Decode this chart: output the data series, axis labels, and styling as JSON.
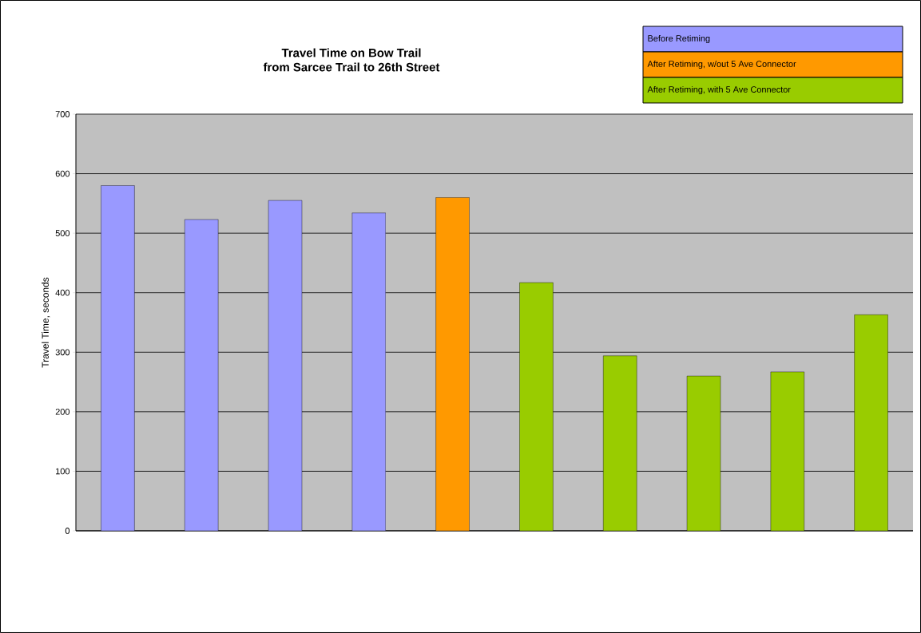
{
  "chart_data": {
    "type": "bar",
    "title": "Travel Time on Bow Trail\nfrom Sarcee Trail to 26th Street",
    "ylabel": "Travel Time, seconds",
    "categories": [
      null,
      null,
      null,
      null,
      null,
      null,
      null,
      null,
      null,
      null
    ],
    "series": [
      {
        "name": "Before Retiming",
        "color": "#9999ff",
        "values": [
          580,
          523,
          555,
          534,
          null,
          null,
          null,
          null,
          null,
          null
        ]
      },
      {
        "name": "After Retiming, w/out 5 Ave Connector",
        "color": "#ff9900",
        "values": [
          null,
          null,
          null,
          null,
          560,
          null,
          null,
          null,
          null,
          null
        ]
      },
      {
        "name": "After Retiming, with 5 Ave Connector",
        "color": "#99cc00",
        "values": [
          null,
          null,
          null,
          null,
          null,
          417,
          294,
          260,
          267,
          363
        ]
      }
    ],
    "ylim": [
      0,
      700
    ],
    "yticks": [
      0,
      100,
      200,
      300,
      400,
      500,
      600,
      700
    ],
    "grid": "y",
    "legend": "top right"
  }
}
